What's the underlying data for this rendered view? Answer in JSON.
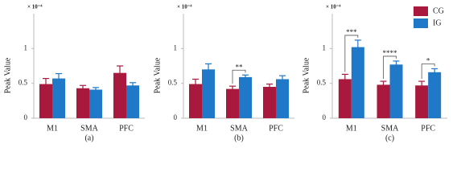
{
  "chart_data": [
    {
      "type": "bar",
      "ylabel": "Peak Value",
      "y_multiplier": "× 10⁻⁴",
      "caption": "(a)",
      "categories": [
        "M1",
        "SMA",
        "PFC"
      ],
      "series": [
        {
          "color": "#a8193d",
          "values": [
            0.49,
            0.43,
            0.65
          ],
          "error": [
            0.08,
            0.04,
            0.1
          ]
        },
        {
          "color": "#1f78c8",
          "values": [
            0.57,
            0.41,
            0.47
          ],
          "error": [
            0.07,
            0.03,
            0.04
          ]
        }
      ],
      "significance": [
        null,
        null,
        null
      ],
      "ylim": [
        0,
        1.5
      ],
      "yticks": [
        0,
        0.5,
        1
      ]
    },
    {
      "type": "bar",
      "ylabel": "Peak Value",
      "y_multiplier": "× 10⁻⁴",
      "caption": "(b)",
      "categories": [
        "M1",
        "SMA",
        "PFC"
      ],
      "series": [
        {
          "color": "#a8193d",
          "values": [
            0.49,
            0.42,
            0.45
          ],
          "error": [
            0.07,
            0.04,
            0.04
          ]
        },
        {
          "color": "#1f78c8",
          "values": [
            0.7,
            0.59,
            0.56
          ],
          "error": [
            0.08,
            0.03,
            0.05
          ]
        }
      ],
      "significance": [
        null,
        "**",
        null
      ],
      "ylim": [
        0,
        1.5
      ],
      "yticks": [
        0,
        0.5,
        1
      ]
    },
    {
      "type": "bar",
      "ylabel": "Peak Value",
      "y_multiplier": "× 10⁻⁴",
      "caption": "(c)",
      "categories": [
        "M1",
        "SMA",
        "PFC"
      ],
      "series": [
        {
          "name": "CG",
          "color": "#a8193d",
          "values": [
            0.56,
            0.48,
            0.47
          ],
          "error": [
            0.07,
            0.05,
            0.06
          ]
        },
        {
          "name": "IG",
          "color": "#1f78c8",
          "values": [
            1.02,
            0.77,
            0.66
          ],
          "error": [
            0.1,
            0.05,
            0.05
          ]
        }
      ],
      "significance": [
        "***",
        "****",
        "*"
      ],
      "legend": "upper right",
      "ylim": [
        0,
        1.5
      ],
      "yticks": [
        0,
        0.5,
        1
      ]
    }
  ]
}
